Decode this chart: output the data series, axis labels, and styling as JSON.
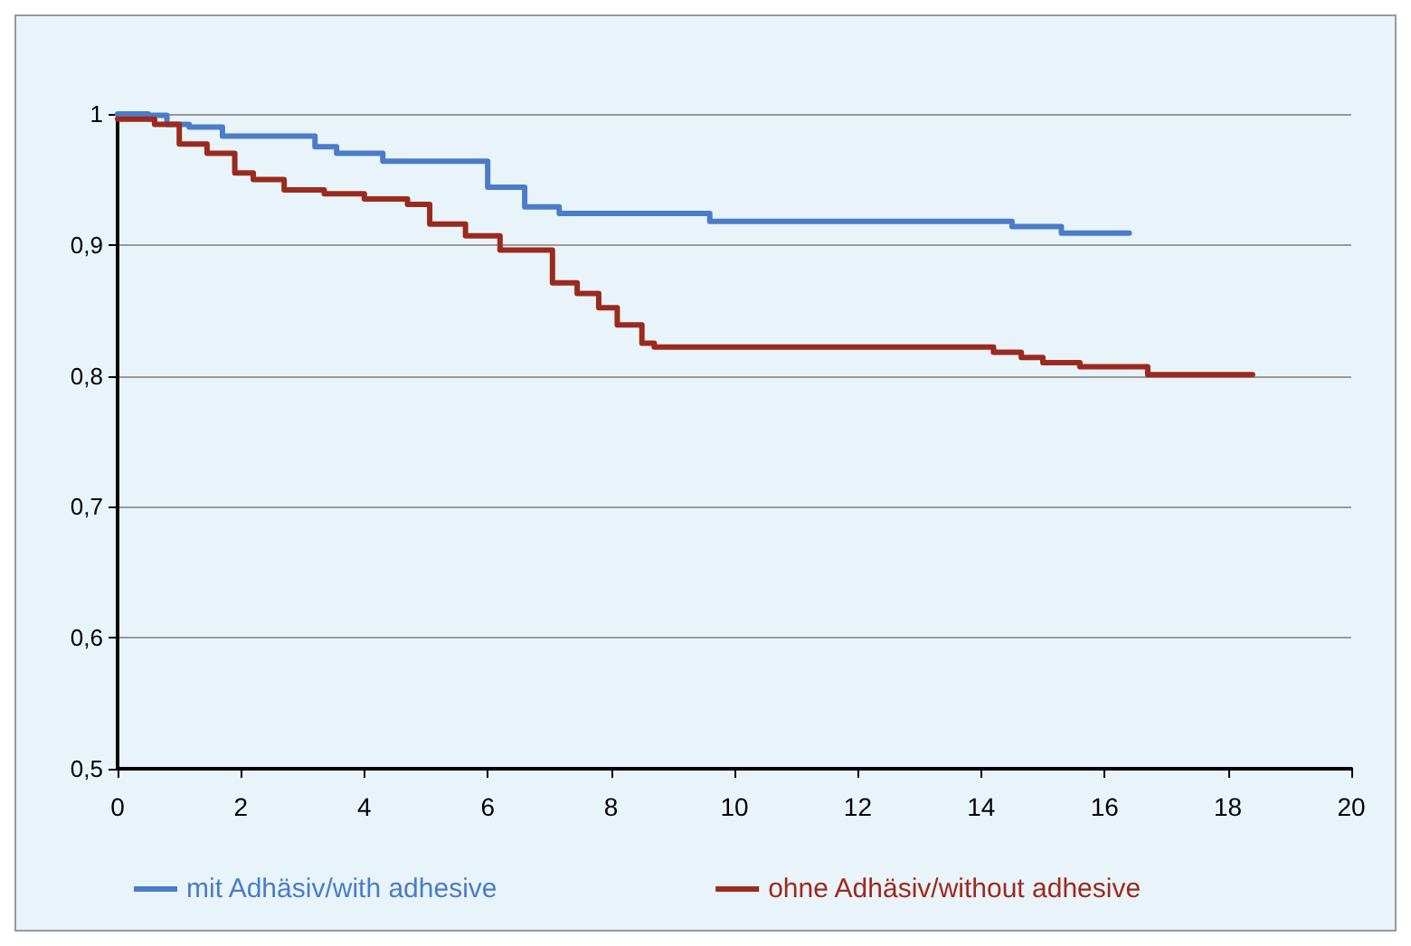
{
  "chart_data": {
    "type": "step",
    "xlim": [
      0,
      20
    ],
    "xticks": [
      0,
      2,
      4,
      6,
      8,
      10,
      12,
      14,
      16,
      18,
      20
    ],
    "ylim": [
      0.5,
      1
    ],
    "yticks": [
      {
        "value": 0.5,
        "label": "0,5"
      },
      {
        "value": 0.6,
        "label": "0,6"
      },
      {
        "value": 0.7,
        "label": "0,7"
      },
      {
        "value": 0.8,
        "label": "0,8"
      },
      {
        "value": 0.9,
        "label": "0,9"
      },
      {
        "value": 1,
        "label": "1"
      }
    ],
    "grid": "y",
    "legend": "bottom",
    "marker": "none",
    "line_style": "solid",
    "series": [
      {
        "name": "mit Adhäsiv/with adhesive",
        "color": "#4a7cc8",
        "x": [
          0,
          0.5,
          0.8,
          1.16,
          1.7,
          3.2,
          3.55,
          4.3,
          6.0,
          6.6,
          7.16,
          9.6,
          14.5,
          15.3,
          16.4
        ],
        "values": [
          1,
          0.999,
          0.992,
          0.99,
          0.983,
          0.975,
          0.97,
          0.964,
          0.944,
          0.929,
          0.924,
          0.918,
          0.914,
          0.909,
          0.909
        ]
      },
      {
        "name": "ohne Adhäsiv/without adhesive",
        "color": "#9b2a1e",
        "x": [
          0,
          0.6,
          1.0,
          1.45,
          1.9,
          2.2,
          2.7,
          3.35,
          4.0,
          4.7,
          5.06,
          5.64,
          6.2,
          7.05,
          7.45,
          7.8,
          8.1,
          8.5,
          8.7,
          14.2,
          14.65,
          15.0,
          15.6,
          16.7,
          18.4
        ],
        "values": [
          0.996,
          0.992,
          0.977,
          0.97,
          0.955,
          0.95,
          0.942,
          0.939,
          0.935,
          0.931,
          0.916,
          0.907,
          0.896,
          0.871,
          0.863,
          0.852,
          0.839,
          0.825,
          0.822,
          0.818,
          0.814,
          0.81,
          0.807,
          0.801,
          0.801
        ]
      }
    ]
  }
}
